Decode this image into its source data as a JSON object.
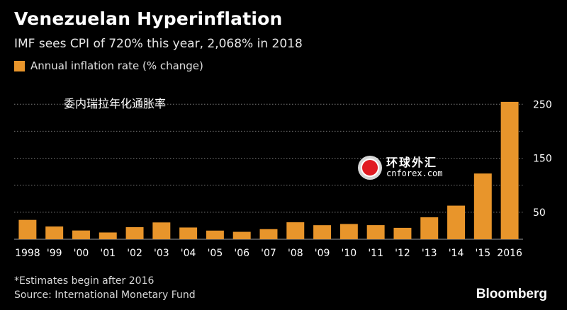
{
  "header": {
    "title": "Venezuelan Hyperinflation",
    "subtitle": "IMF sees CPI of 720% this year, 2,068% in 2018"
  },
  "legend": {
    "label": "Annual inflation rate (% change)",
    "swatch_color": "#E8952B"
  },
  "annotation": {
    "text": "委内瑞拉年化通胀率"
  },
  "watermark": {
    "cn": "环球外汇",
    "en": "cnforex.com",
    "icon": "cnforex-logo-icon"
  },
  "footer": {
    "footnote": "*Estimates begin after 2016",
    "source": "Source: International Monetary Fund",
    "brand": "Bloomberg"
  },
  "colors": {
    "background": "#000000",
    "bar": "#E8952B",
    "grid": "#7a7a7a",
    "text": "#ffffff"
  },
  "chart_data": {
    "type": "bar",
    "categories": [
      "1998",
      "'99",
      "'00",
      "'01",
      "'02",
      "'03",
      "'04",
      "'05",
      "'06",
      "'07",
      "'08",
      "'09",
      "'10",
      "'11",
      "'12",
      "'13",
      "'14",
      "'15",
      "2016"
    ],
    "values": [
      35.8,
      23.6,
      16.2,
      12.5,
      22.4,
      31.1,
      21.7,
      16.0,
      13.7,
      18.7,
      31.4,
      26.0,
      28.2,
      26.1,
      21.1,
      40.6,
      62.2,
      121.7,
      254.4
    ],
    "y_ticks": [
      50,
      150,
      250
    ],
    "ylim": [
      0,
      270
    ],
    "grid": true,
    "grid_style": "dotted",
    "y_axis_position": "right",
    "legend_position": "top-left"
  }
}
